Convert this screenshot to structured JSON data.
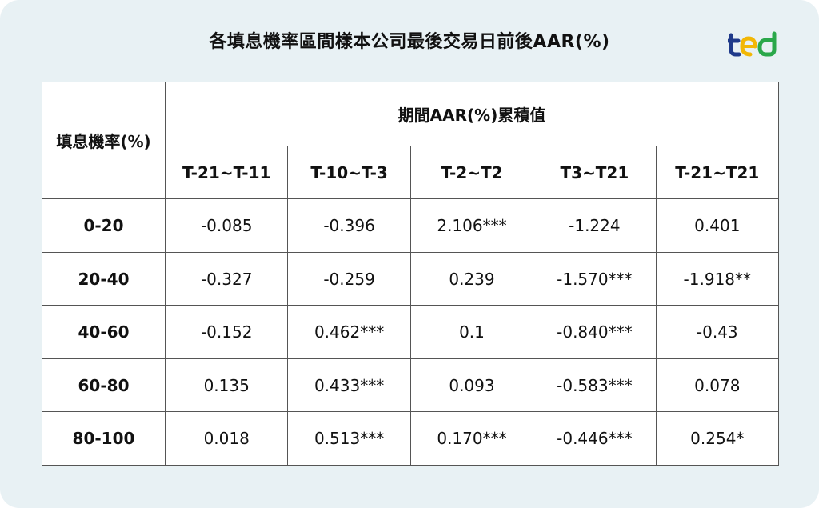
{
  "title": "各填息機率區間樣本公司最後交易日前後AAR(%)",
  "logo": {
    "icon": "brand-logo-icon",
    "colors": [
      "#1f3a8a",
      "#f2b705",
      "#2aa84a"
    ]
  },
  "table": {
    "row_header": "填息機率(%)",
    "group_header": "期間AAR(%)累積值",
    "columns": [
      "T-21~T-11",
      "T-10~T-3",
      "T-2~T2",
      "T3~T21",
      "T-21~T21"
    ],
    "rows": [
      {
        "label": "0-20",
        "values": [
          "-0.085",
          "-0.396",
          "2.106***",
          "-1.224",
          "0.401"
        ]
      },
      {
        "label": "20-40",
        "values": [
          "-0.327",
          "-0.259",
          "0.239",
          "-1.570***",
          "-1.918**"
        ]
      },
      {
        "label": "40-60",
        "values": [
          "-0.152",
          "0.462***",
          "0.1",
          "-0.840***",
          "-0.43"
        ]
      },
      {
        "label": "60-80",
        "values": [
          "0.135",
          "0.433***",
          "0.093",
          "-0.583***",
          "0.078"
        ]
      },
      {
        "label": "80-100",
        "values": [
          "0.018",
          "0.513***",
          "0.170***",
          "-0.446***",
          "0.254*"
        ]
      }
    ]
  }
}
